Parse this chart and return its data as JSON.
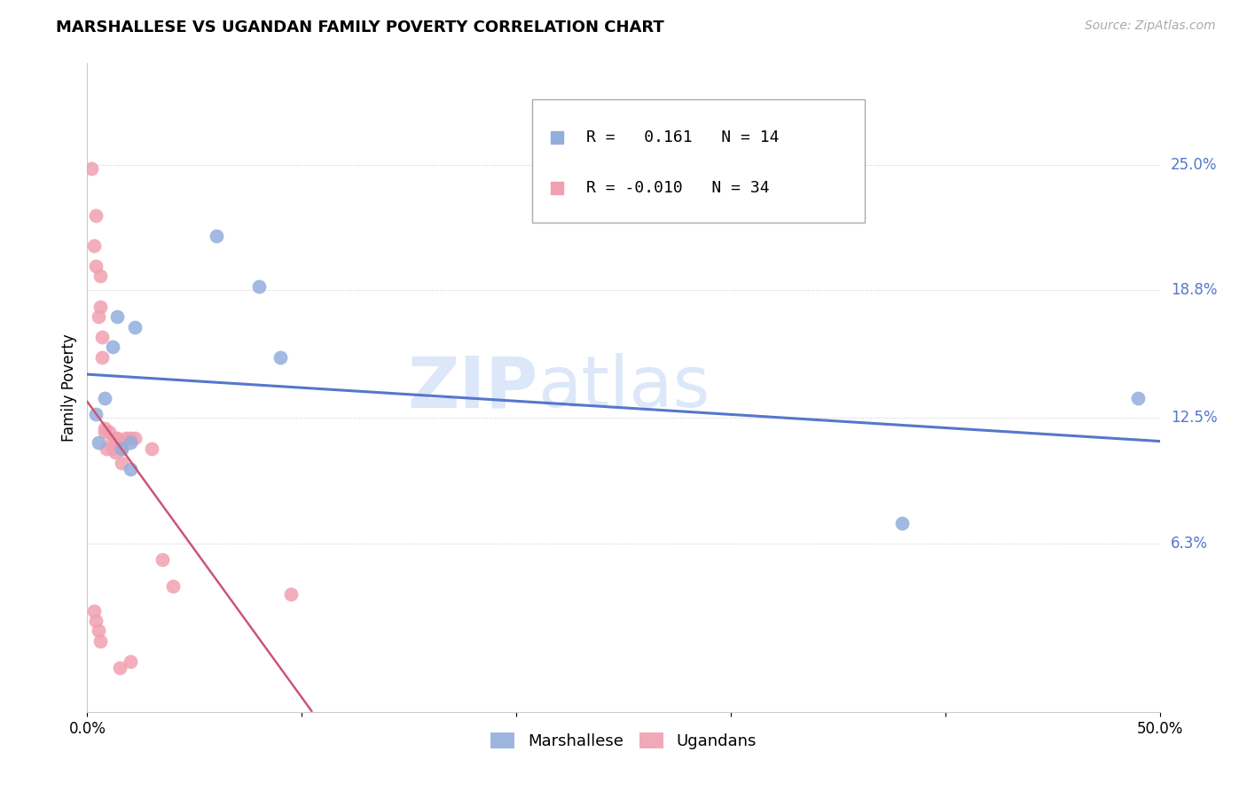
{
  "title": "MARSHALLESE VS UGANDAN FAMILY POVERTY CORRELATION CHART",
  "source": "Source: ZipAtlas.com",
  "ylabel": "Family Poverty",
  "xlim": [
    0.0,
    0.5
  ],
  "ylim": [
    -0.02,
    0.3
  ],
  "yticks": [
    0.063,
    0.125,
    0.188,
    0.25
  ],
  "ytick_labels": [
    "6.3%",
    "12.5%",
    "18.8%",
    "25.0%"
  ],
  "xticks": [
    0.0,
    0.1,
    0.2,
    0.3,
    0.4,
    0.5
  ],
  "xtick_labels": [
    "0.0%",
    "",
    "",
    "",
    "",
    "50.0%"
  ],
  "blue_color": "#92aedd",
  "pink_color": "#f0a0b0",
  "trend_blue": "#5577cc",
  "trend_pink": "#cc5577",
  "legend_R_blue": "0.161",
  "legend_N_blue": "14",
  "legend_R_pink": "-0.010",
  "legend_N_pink": "34",
  "legend_label_blue": "Marshallese",
  "legend_label_pink": "Ugandans",
  "marshallese_x": [
    0.004,
    0.005,
    0.008,
    0.012,
    0.014,
    0.016,
    0.02,
    0.02,
    0.022,
    0.06,
    0.08,
    0.09,
    0.38,
    0.49
  ],
  "marshallese_y": [
    0.127,
    0.113,
    0.135,
    0.16,
    0.175,
    0.11,
    0.113,
    0.1,
    0.17,
    0.215,
    0.19,
    0.155,
    0.073,
    0.135
  ],
  "ugandan_x": [
    0.002,
    0.003,
    0.004,
    0.004,
    0.005,
    0.006,
    0.006,
    0.007,
    0.007,
    0.008,
    0.008,
    0.009,
    0.01,
    0.011,
    0.012,
    0.013,
    0.013,
    0.014,
    0.015,
    0.016,
    0.016,
    0.018,
    0.02,
    0.022,
    0.03,
    0.035,
    0.04,
    0.095,
    0.003,
    0.004,
    0.005,
    0.006,
    0.015,
    0.02
  ],
  "ugandan_y": [
    0.248,
    0.21,
    0.225,
    0.2,
    0.175,
    0.195,
    0.18,
    0.165,
    0.155,
    0.12,
    0.118,
    0.11,
    0.118,
    0.112,
    0.11,
    0.115,
    0.108,
    0.115,
    0.112,
    0.11,
    0.103,
    0.115,
    0.115,
    0.115,
    0.11,
    0.055,
    0.042,
    0.038,
    0.03,
    0.025,
    0.02,
    0.015,
    0.002,
    0.005
  ]
}
